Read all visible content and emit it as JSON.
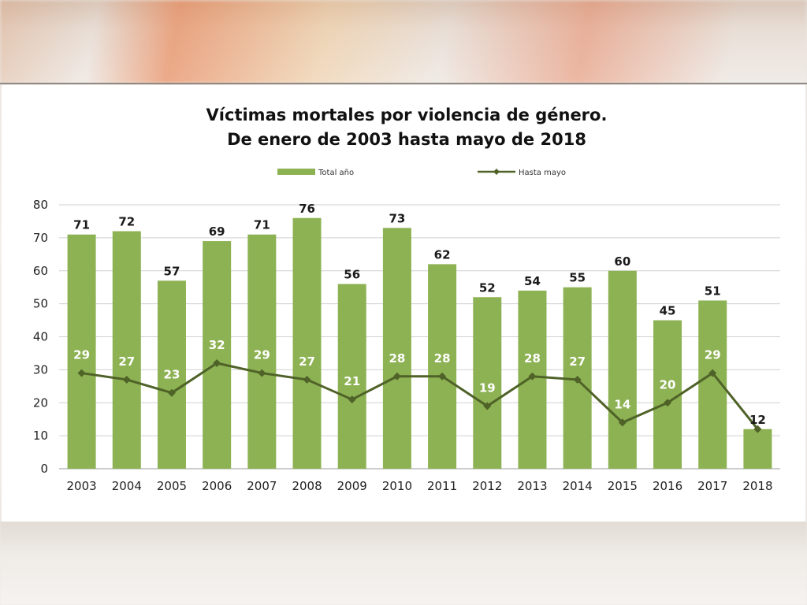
{
  "chart_data": {
    "type": "bar",
    "title": "Víctimas mortales por violencia de género.",
    "subtitle": "De enero de 2003 hasta mayo de 2018",
    "categories": [
      "2003",
      "2004",
      "2005",
      "2006",
      "2007",
      "2008",
      "2009",
      "2010",
      "2011",
      "2012",
      "2013",
      "2014",
      "2015",
      "2016",
      "2017",
      "2018"
    ],
    "series": [
      {
        "name": "Total año",
        "type": "bar",
        "color": "#8db253",
        "values": [
          71,
          72,
          57,
          69,
          71,
          76,
          56,
          73,
          62,
          52,
          54,
          55,
          60,
          45,
          51,
          12
        ]
      },
      {
        "name": "Hasta mayo",
        "type": "line",
        "color": "#4f6228",
        "values": [
          29,
          27,
          23,
          32,
          29,
          27,
          21,
          28,
          28,
          19,
          28,
          27,
          14,
          20,
          29,
          12
        ]
      }
    ],
    "ylim": [
      0,
      80
    ],
    "yticks": [
      0,
      10,
      20,
      30,
      40,
      50,
      60,
      70,
      80
    ],
    "grid": true,
    "legend": "top"
  }
}
